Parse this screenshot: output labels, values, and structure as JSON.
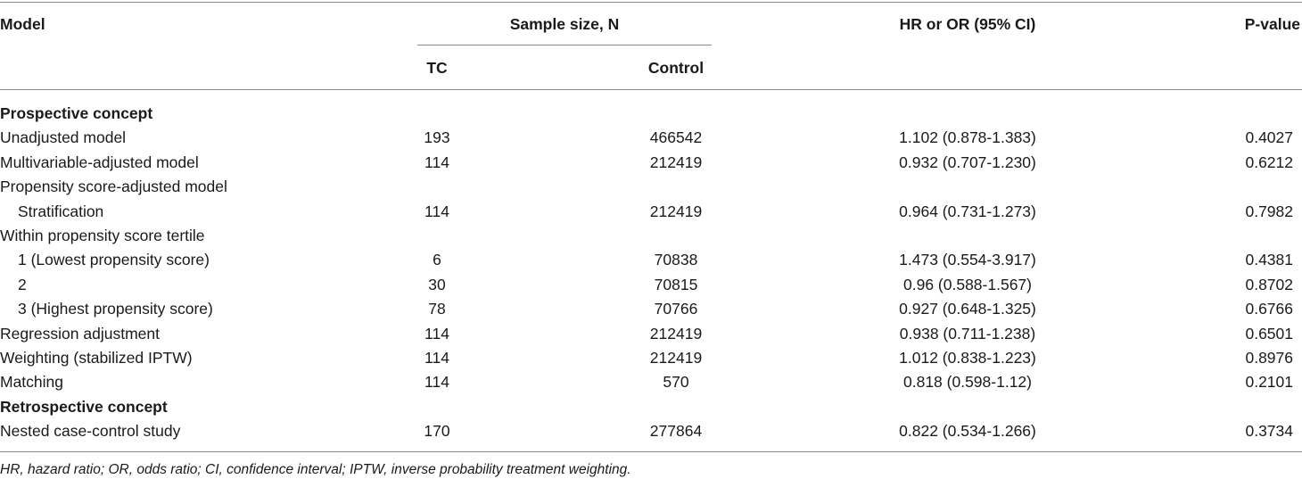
{
  "table": {
    "header": {
      "model": "Model",
      "sample_size": "Sample size, N",
      "tc": "TC",
      "control": "Control",
      "estimate": "HR or OR (95% CI)",
      "p_value": "P-value"
    },
    "sections": [
      {
        "title": "Prospective concept",
        "rows": [
          {
            "cells": [
              "Unadjusted model",
              "193",
              "466542",
              "1.102 (0.878-1.383)",
              "0.4027"
            ]
          },
          {
            "cells": [
              "Multivariable-adjusted model",
              "114",
              "212419",
              "0.932 (0.707-1.230)",
              "0.6212"
            ]
          },
          {
            "label": "Propensity score-adjusted model",
            "rows": [
              {
                "cells": [
                  "Stratification",
                  "114",
                  "212419",
                  "0.964 (0.731-1.273)",
                  "0.7982"
                ]
              }
            ]
          },
          {
            "label": "Within propensity score tertile",
            "rows": [
              {
                "cells": [
                  "1 (Lowest propensity score)",
                  "6",
                  "70838",
                  "1.473 (0.554-3.917)",
                  "0.4381"
                ]
              },
              {
                "cells": [
                  "2",
                  "30",
                  "70815",
                  "0.96 (0.588-1.567)",
                  "0.8702"
                ]
              },
              {
                "cells": [
                  "3 (Highest propensity score)",
                  "78",
                  "70766",
                  "0.927 (0.648-1.325)",
                  "0.6766"
                ]
              }
            ]
          },
          {
            "cells": [
              "Regression adjustment",
              "114",
              "212419",
              "0.938 (0.711-1.238)",
              "0.6501"
            ]
          },
          {
            "cells": [
              "Weighting (stabilized IPTW)",
              "114",
              "212419",
              "1.012 (0.838-1.223)",
              "0.8976"
            ]
          },
          {
            "cells": [
              "Matching",
              "114",
              "570",
              "0.818 (0.598-1.12)",
              "0.2101"
            ]
          }
        ]
      },
      {
        "title": "Retrospective concept",
        "rows": [
          {
            "cells": [
              "Nested case-control study",
              "170",
              "277864",
              "0.822 (0.534-1.266)",
              "0.3734"
            ]
          }
        ]
      }
    ],
    "footnote": "HR, hazard ratio; OR, odds ratio; CI, confidence interval; IPTW, inverse probability treatment weighting."
  }
}
